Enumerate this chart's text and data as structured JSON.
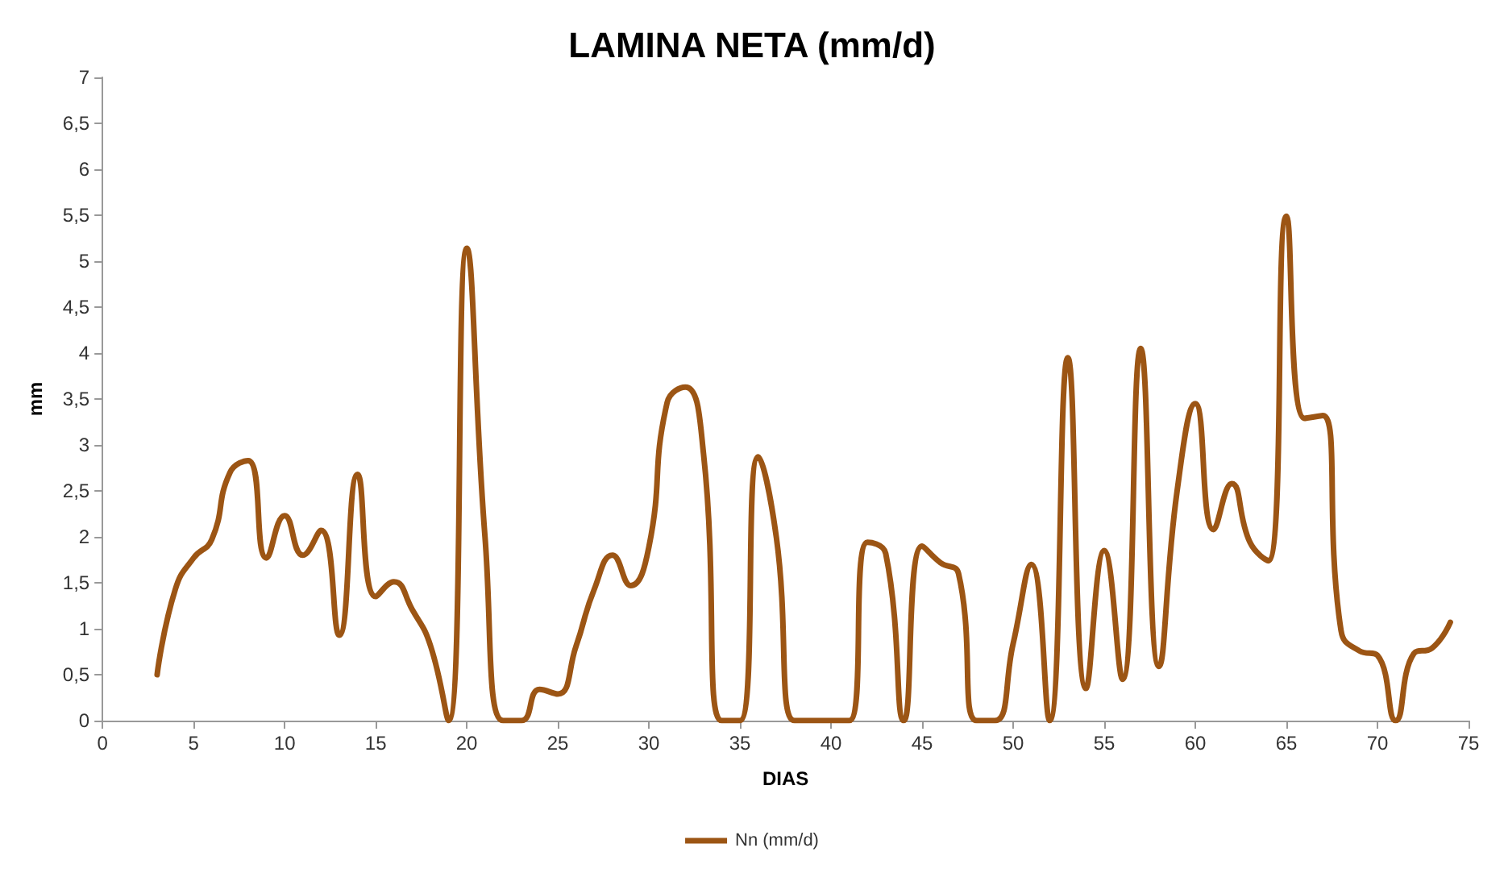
{
  "chart_data": {
    "type": "line",
    "title": "LAMINA NETA (mm/d)",
    "xlabel": "DIAS",
    "ylabel": "mm",
    "x": [
      3,
      4,
      5,
      6,
      7,
      8,
      9,
      10,
      11,
      12,
      13,
      14,
      15,
      16,
      17,
      18,
      19,
      20,
      21,
      22,
      23,
      24,
      25,
      26,
      27,
      28,
      29,
      30,
      31,
      32,
      33,
      34,
      35,
      36,
      37,
      38,
      39,
      40,
      41,
      42,
      43,
      44,
      45,
      46,
      47,
      48,
      49,
      50,
      51,
      52,
      53,
      54,
      55,
      56,
      57,
      58,
      59,
      60,
      61,
      62,
      63,
      64,
      65,
      66,
      67,
      68,
      69,
      70,
      71,
      72,
      73,
      74
    ],
    "series": [
      {
        "name": "Nn (mm/d)",
        "color": "#9c5514",
        "values": [
          0.5,
          1.43,
          1.77,
          1.97,
          2.7,
          2.83,
          1.77,
          2.23,
          1.8,
          2.07,
          0.93,
          2.68,
          1.35,
          1.51,
          1.21,
          0.82,
          0,
          5.14,
          2.0,
          0,
          0,
          0.34,
          0.29,
          0.81,
          1.43,
          1.8,
          1.47,
          1.89,
          3.46,
          3.63,
          2.9,
          0,
          0,
          2.87,
          1.99,
          0,
          0,
          0,
          0,
          1.94,
          1.82,
          0,
          1.9,
          1.72,
          1.6,
          0,
          0,
          0.84,
          1.7,
          0,
          3.95,
          0.35,
          1.85,
          0.45,
          4.05,
          0.59,
          2.5,
          3.45,
          2.08,
          2.58,
          1.94,
          1.74,
          5.49,
          3.29,
          3.32,
          0.98,
          0.76,
          0.71,
          0,
          0.73,
          0.79,
          1.07
        ]
      }
    ],
    "xlim": [
      0,
      75
    ],
    "xticks": [
      0,
      5,
      10,
      15,
      20,
      25,
      30,
      35,
      40,
      45,
      50,
      55,
      60,
      65,
      70,
      75
    ],
    "ylim": [
      0,
      7
    ],
    "yticks": [
      0,
      {
        "value": 0.5,
        "label": "0,5"
      },
      1,
      {
        "value": 1.5,
        "label": "1,5"
      },
      2,
      {
        "value": 2.5,
        "label": "2,5"
      },
      3,
      {
        "value": 3.5,
        "label": "3,5"
      },
      4,
      {
        "value": 4.5,
        "label": "4,5"
      },
      5,
      {
        "value": 5.5,
        "label": "5,5"
      },
      6,
      {
        "value": 6.5,
        "label": "6,5"
      },
      7
    ],
    "grid": false,
    "legend": "bottom",
    "marker": "none",
    "line_style": "solid"
  }
}
